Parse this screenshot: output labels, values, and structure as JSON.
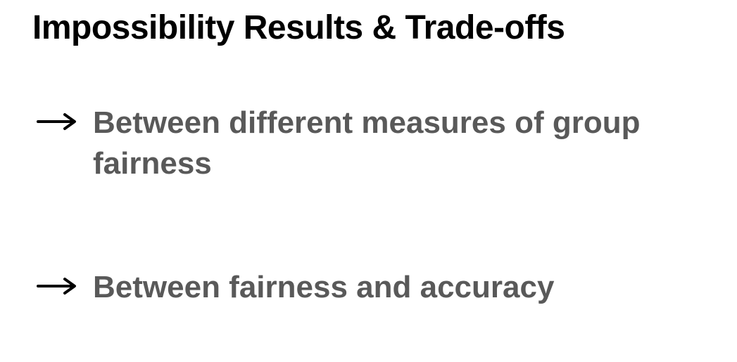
{
  "slide": {
    "title": "Impossibility Results & Trade-offs",
    "bullets": [
      {
        "icon": "arrow-right-icon",
        "text": "Between different measures of group fairness"
      },
      {
        "icon": "arrow-right-icon",
        "text": "Between fairness and accuracy"
      }
    ]
  },
  "colors": {
    "background": "#ffffff",
    "title": "#000000",
    "bullet_text": "#595959",
    "arrow": "#000000"
  }
}
